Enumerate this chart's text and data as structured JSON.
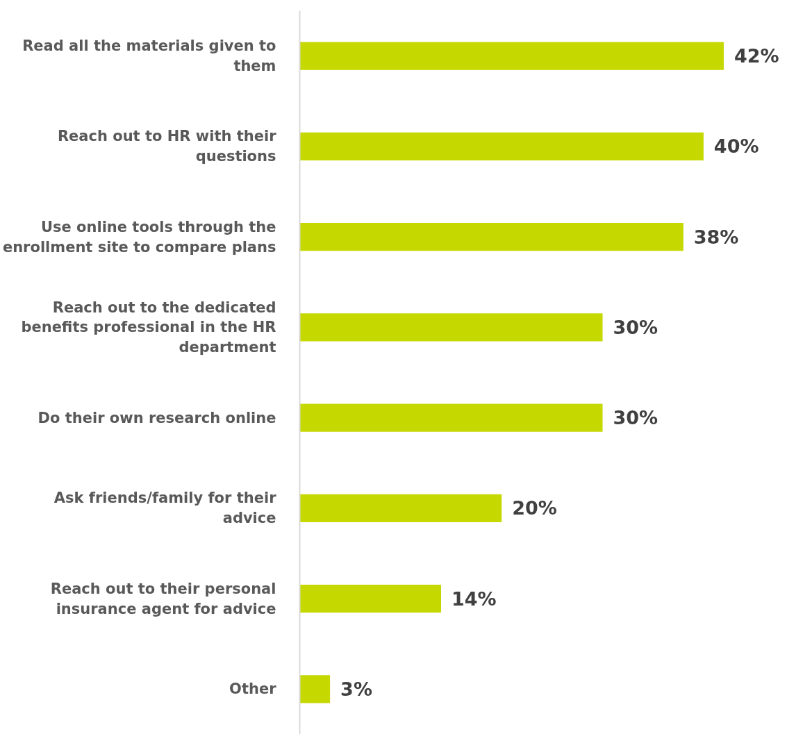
{
  "chart_data": {
    "type": "bar",
    "orientation": "horizontal",
    "categories": [
      "Read all the materials given to them",
      "Reach out to HR with their questions",
      "Use online tools through the enrollment site to compare plans",
      "Reach out to the dedicated benefits professional in the HR department",
      "Do their own research online",
      "Ask friends/family for their advice",
      "Reach out to their personal insurance agent for advice",
      "Other"
    ],
    "values": [
      42,
      40,
      38,
      30,
      30,
      20,
      14,
      3
    ],
    "value_labels": [
      "42%",
      "40%",
      "38%",
      "30%",
      "30%",
      "20%",
      "14%",
      "3%"
    ],
    "color": "#c5d800",
    "tick_labels": "y"
  }
}
